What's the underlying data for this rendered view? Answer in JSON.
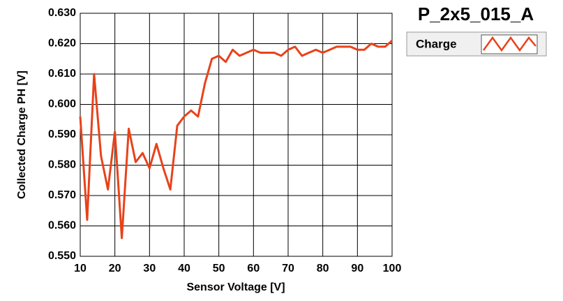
{
  "chart_data": {
    "type": "line",
    "title": "P_2x5_015_A",
    "xlabel": "Sensor Voltage [V]",
    "ylabel": "Collected Charge PH [V]",
    "x": [
      10,
      12,
      14,
      16,
      18,
      20,
      22,
      24,
      26,
      28,
      30,
      32,
      34,
      36,
      38,
      40,
      42,
      44,
      46,
      48,
      50,
      52,
      54,
      56,
      58,
      60,
      62,
      64,
      66,
      68,
      70,
      72,
      74,
      76,
      78,
      80,
      82,
      84,
      86,
      88,
      90,
      92,
      94,
      96,
      98,
      100
    ],
    "series": [
      {
        "name": "Charge",
        "color": "#e8421a",
        "values": [
          0.596,
          0.562,
          0.61,
          0.583,
          0.572,
          0.591,
          0.556,
          0.592,
          0.581,
          0.584,
          0.579,
          0.587,
          0.579,
          0.572,
          0.593,
          0.596,
          0.598,
          0.596,
          0.607,
          0.615,
          0.616,
          0.614,
          0.618,
          0.616,
          0.617,
          0.618,
          0.617,
          0.617,
          0.617,
          0.616,
          0.618,
          0.619,
          0.616,
          0.617,
          0.618,
          0.617,
          0.618,
          0.619,
          0.619,
          0.619,
          0.618,
          0.618,
          0.62,
          0.619,
          0.619,
          0.621
        ]
      }
    ],
    "xlim": [
      10,
      100
    ],
    "xticks": [
      10,
      20,
      30,
      40,
      50,
      60,
      70,
      80,
      90,
      100
    ],
    "ylim": [
      0.55,
      0.63
    ],
    "yticks": [
      {
        "value": 0.55,
        "label": "0.550"
      },
      {
        "value": 0.56,
        "label": "0.560"
      },
      {
        "value": 0.57,
        "label": "0.570"
      },
      {
        "value": 0.58,
        "label": "0.580"
      },
      {
        "value": 0.59,
        "label": "0.590"
      },
      {
        "value": 0.6,
        "label": "0.600"
      },
      {
        "value": 0.61,
        "label": "0.610"
      },
      {
        "value": 0.62,
        "label": "0.620"
      },
      {
        "value": 0.63,
        "label": "0.630"
      }
    ],
    "grid": true
  }
}
